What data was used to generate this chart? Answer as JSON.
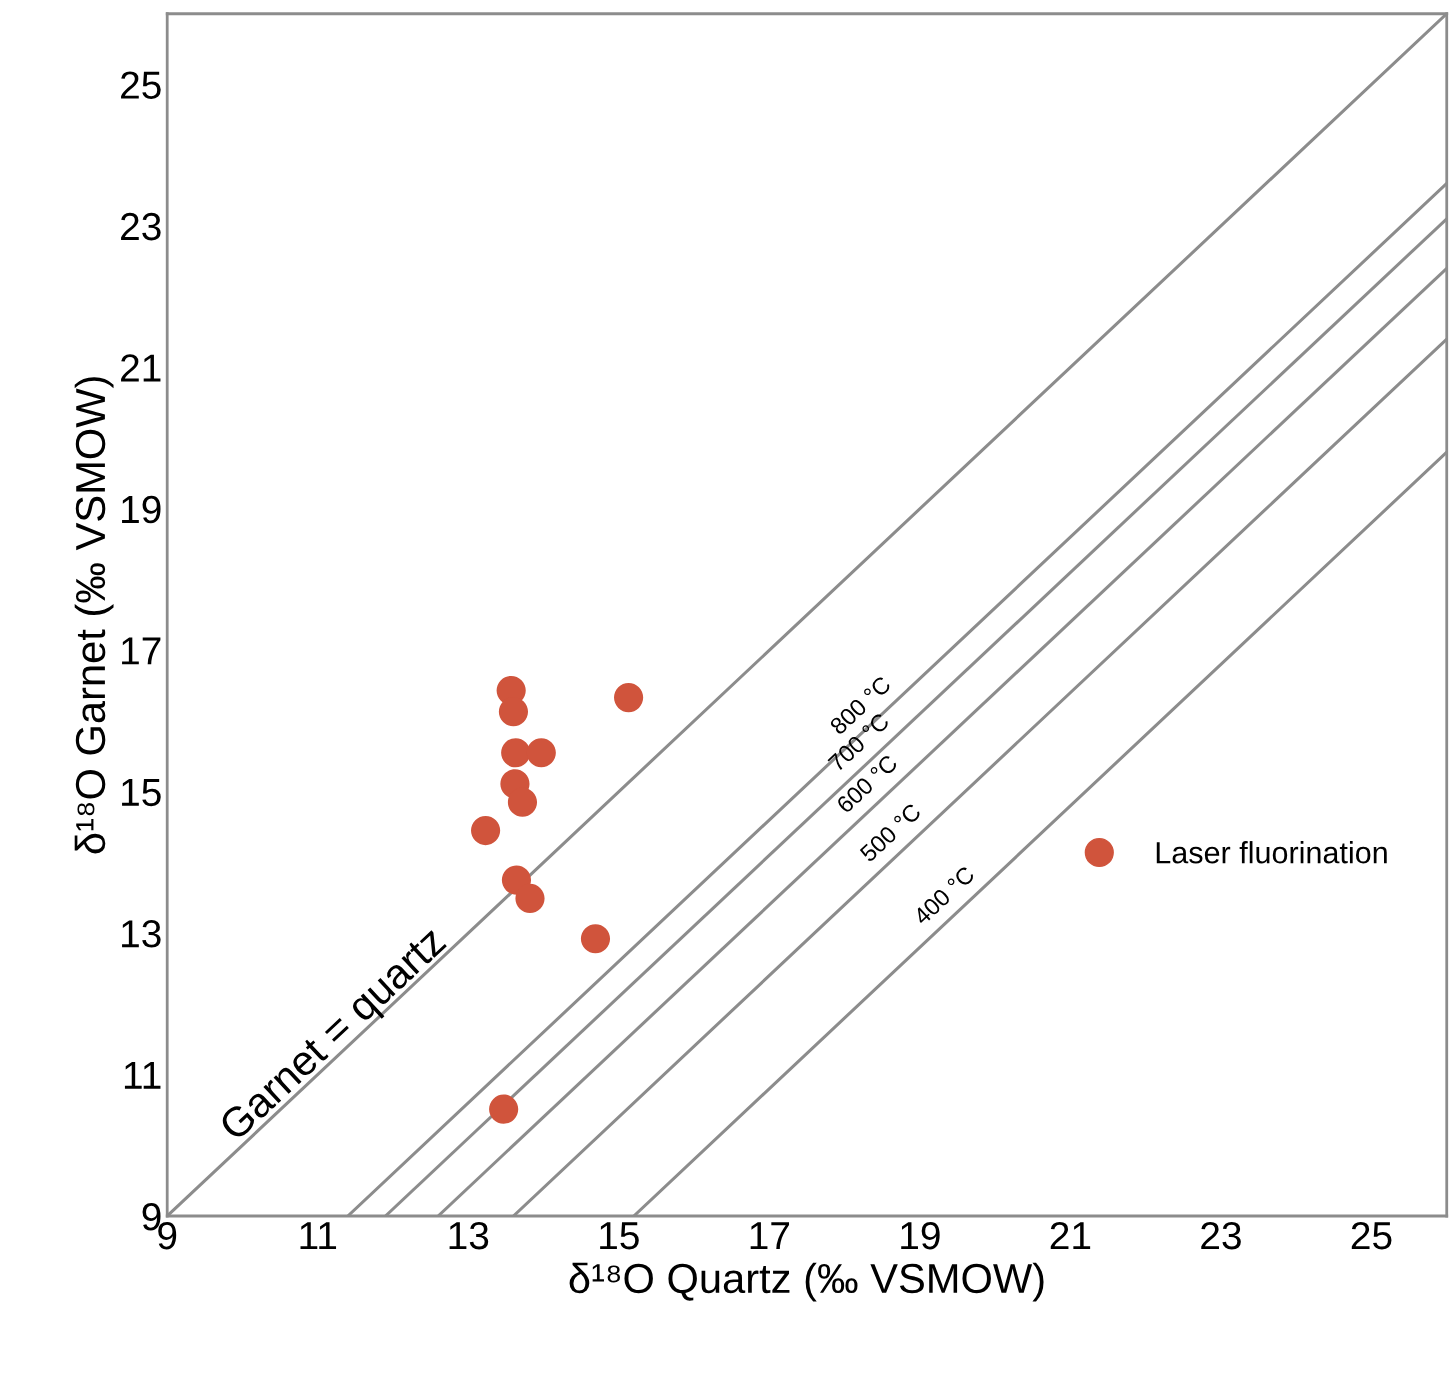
{
  "chart_data": {
    "type": "scatter",
    "xlabel": "δ¹⁸O Quartz (‰ VSMOW)",
    "ylabel": "δ¹⁸O Garnet (‰ VSMOW)",
    "xlim": [
      9,
      26
    ],
    "ylim": [
      9,
      26
    ],
    "xticks": [
      9,
      11,
      13,
      15,
      17,
      19,
      21,
      23,
      25
    ],
    "yticks": [
      9,
      11,
      13,
      15,
      17,
      19,
      21,
      23,
      25
    ],
    "grid": false,
    "legend": "right",
    "series": [
      {
        "name": "Laser fluorination",
        "type": "scatter",
        "marker": "circle",
        "color": "#d0543c",
        "x": [
          13.57,
          13.6,
          13.63,
          13.97,
          13.62,
          13.72,
          13.23,
          15.13,
          13.64,
          13.82,
          14.69,
          13.47
        ],
        "values": [
          16.43,
          16.13,
          15.55,
          15.55,
          15.11,
          14.85,
          14.45,
          16.33,
          13.75,
          13.49,
          12.92,
          10.51
        ]
      },
      {
        "name": "Garnet = quartz",
        "type": "line",
        "color": "#8c8c8c",
        "x": [
          9,
          26
        ],
        "values": [
          9,
          26
        ]
      },
      {
        "name": "800 °C",
        "type": "line",
        "color": "#8c8c8c",
        "x": [
          11.4,
          26
        ],
        "values": [
          9,
          23.6
        ]
      },
      {
        "name": "700 °C",
        "type": "line",
        "color": "#8c8c8c",
        "x": [
          11.9,
          26
        ],
        "values": [
          9,
          23.1
        ]
      },
      {
        "name": "600 °C",
        "type": "line",
        "color": "#8c8c8c",
        "x": [
          12.6,
          26
        ],
        "values": [
          9,
          22.4
        ]
      },
      {
        "name": "500 °C",
        "type": "line",
        "color": "#8c8c8c",
        "x": [
          13.6,
          26
        ],
        "values": [
          9,
          21.4
        ]
      },
      {
        "name": "400 °C",
        "type": "line",
        "color": "#8c8c8c",
        "x": [
          15.2,
          26
        ],
        "values": [
          9,
          19.8
        ]
      }
    ]
  }
}
